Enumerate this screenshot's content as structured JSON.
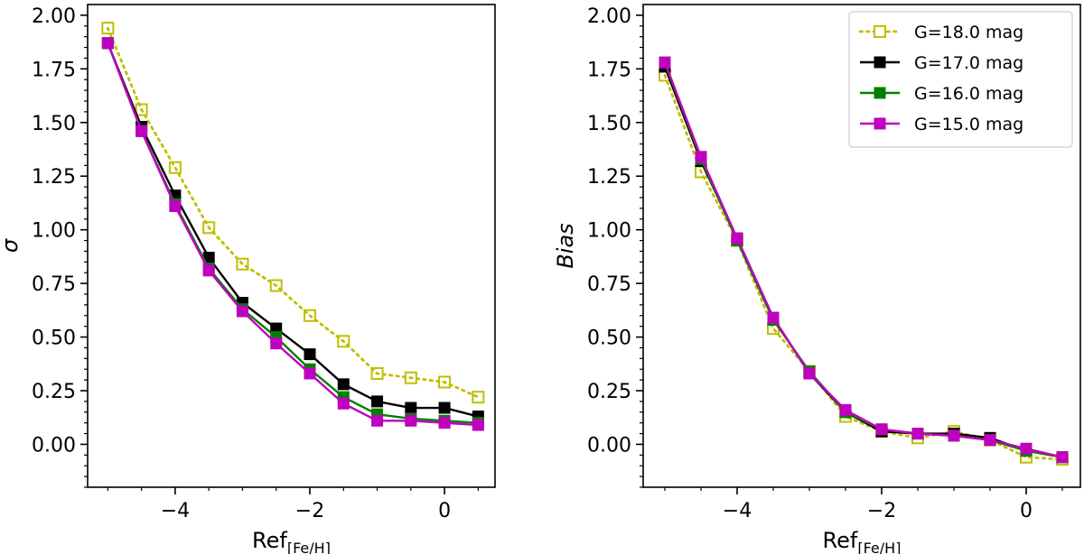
{
  "chart_data": [
    {
      "type": "line",
      "title": "",
      "xlabel": "Ref",
      "xlabel_sub": "[Fe/H]",
      "ylabel": "σ",
      "xlim": [
        -5.3,
        0.75
      ],
      "ylim": [
        -0.2,
        2.05
      ],
      "xticks": [
        -4,
        -2,
        0
      ],
      "xtick_labels": [
        "−4",
        "−2",
        "0"
      ],
      "yticks": [
        0.0,
        0.25,
        0.5,
        0.75,
        1.0,
        1.25,
        1.5,
        1.75,
        2.0
      ],
      "ytick_labels": [
        "0.00",
        "0.25",
        "0.50",
        "0.75",
        "1.00",
        "1.25",
        "1.50",
        "1.75",
        "2.00"
      ],
      "x": [
        -5.0,
        -4.5,
        -4.0,
        -3.5,
        -3.0,
        -2.5,
        -2.0,
        -1.5,
        -1.0,
        -0.5,
        0.0,
        0.5
      ],
      "series": [
        {
          "name": "G=18.0 mag",
          "values": [
            1.94,
            1.56,
            1.29,
            1.01,
            0.84,
            0.74,
            0.6,
            0.48,
            0.33,
            0.31,
            0.29,
            0.22
          ]
        },
        {
          "name": "G=17.0 mag",
          "values": [
            1.87,
            1.48,
            1.16,
            0.87,
            0.66,
            0.54,
            0.42,
            0.28,
            0.2,
            0.17,
            0.17,
            0.13
          ]
        },
        {
          "name": "G=16.0 mag",
          "values": [
            1.87,
            1.46,
            1.12,
            0.82,
            0.63,
            0.5,
            0.35,
            0.22,
            0.14,
            0.12,
            0.11,
            0.1
          ]
        },
        {
          "name": "G=15.0 mag",
          "values": [
            1.87,
            1.46,
            1.11,
            0.81,
            0.62,
            0.47,
            0.33,
            0.19,
            0.11,
            0.11,
            0.1,
            0.09
          ]
        }
      ]
    },
    {
      "type": "line",
      "title": "",
      "xlabel": "Ref",
      "xlabel_sub": "[Fe/H]",
      "ylabel": "Bias",
      "xlim": [
        -5.3,
        0.75
      ],
      "ylim": [
        -0.2,
        2.05
      ],
      "xticks": [
        -4,
        -2,
        0
      ],
      "xtick_labels": [
        "−4",
        "−2",
        "0"
      ],
      "yticks": [
        0.0,
        0.25,
        0.5,
        0.75,
        1.0,
        1.25,
        1.5,
        1.75,
        2.0
      ],
      "ytick_labels": [
        "0.00",
        "0.25",
        "0.50",
        "0.75",
        "1.00",
        "1.25",
        "1.50",
        "1.75",
        "2.00"
      ],
      "x": [
        -5.0,
        -4.5,
        -4.0,
        -3.5,
        -3.0,
        -2.5,
        -2.0,
        -1.5,
        -1.0,
        -0.5,
        0.0,
        0.5
      ],
      "legend_position": "top-right",
      "series": [
        {
          "name": "G=18.0 mag",
          "values": [
            1.72,
            1.27,
            0.95,
            0.54,
            0.34,
            0.13,
            0.06,
            0.03,
            0.06,
            0.02,
            -0.06,
            -0.07
          ]
        },
        {
          "name": "G=17.0 mag",
          "values": [
            1.76,
            1.32,
            0.96,
            0.59,
            0.33,
            0.15,
            0.06,
            0.05,
            0.05,
            0.03,
            -0.03,
            -0.06
          ]
        },
        {
          "name": "G=16.0 mag",
          "values": [
            1.78,
            1.33,
            0.95,
            0.58,
            0.34,
            0.15,
            0.07,
            0.05,
            0.04,
            0.02,
            -0.03,
            -0.06
          ]
        },
        {
          "name": "G=15.0 mag",
          "values": [
            1.78,
            1.34,
            0.96,
            0.59,
            0.33,
            0.16,
            0.07,
            0.05,
            0.04,
            0.02,
            -0.02,
            -0.06
          ]
        }
      ]
    }
  ],
  "series_styles": [
    {
      "color": "#bfbf00",
      "marker": "square-open",
      "line": "dotted"
    },
    {
      "color": "#000000",
      "marker": "square-filled",
      "line": "solid"
    },
    {
      "color": "#008000",
      "marker": "square-filled",
      "line": "solid"
    },
    {
      "color": "#bf00bf",
      "marker": "square-filled",
      "line": "solid"
    }
  ]
}
